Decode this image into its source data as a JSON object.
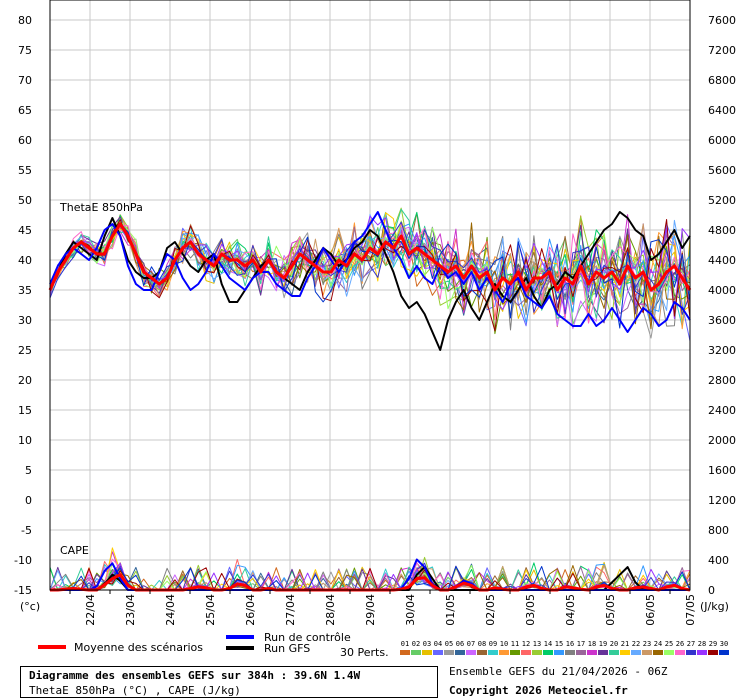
{
  "chart_data": {
    "type": "line",
    "top_panel_label": "ThetaE 850hPa",
    "bottom_panel_label": "CAPE",
    "left_unit": "(°c)",
    "right_unit": "(J/kg)",
    "left_axis_ticks": [
      80,
      75,
      70,
      65,
      60,
      55,
      50,
      45,
      40,
      35,
      30,
      25,
      20,
      15,
      10,
      5,
      0,
      -5,
      -10,
      -15
    ],
    "right_axis_ticks": [
      7600,
      7200,
      6800,
      6400,
      6000,
      5600,
      5200,
      4800,
      4400,
      4000,
      3600,
      3200,
      2800,
      2400,
      2000,
      1600,
      1200,
      800,
      400,
      0
    ],
    "ylim": [
      -15,
      80
    ],
    "ylim_right": [
      0,
      7600
    ],
    "x_labels": [
      "22/04",
      "23/04",
      "24/04",
      "25/04",
      "26/04",
      "27/04",
      "28/04",
      "29/04",
      "30/04",
      "01/05",
      "02/05",
      "03/05",
      "04/05",
      "05/05",
      "06/05",
      "07/05"
    ],
    "series": [
      {
        "name": "Moyenne des scénarios",
        "color": "#ff0000",
        "thetae": [
          35,
          38,
          40,
          42,
          43,
          42,
          41,
          41,
          44,
          46,
          44,
          41,
          38,
          37,
          36,
          37,
          40,
          42,
          43,
          41,
          40,
          39,
          41,
          40,
          40,
          39,
          40,
          38,
          40,
          38,
          37,
          39,
          41,
          40,
          39,
          38,
          38,
          40,
          39,
          41,
          40,
          42,
          41,
          43,
          42,
          44,
          41,
          42,
          41,
          40,
          39,
          38,
          39,
          37,
          39,
          37,
          38,
          35,
          37,
          36,
          38,
          35,
          37,
          37,
          38,
          35,
          37,
          36,
          39,
          36,
          38,
          37,
          38,
          36,
          39,
          37,
          38,
          35,
          36,
          38,
          39,
          37,
          35
        ],
        "cape": [
          0,
          0,
          10,
          20,
          10,
          0,
          0,
          70,
          150,
          200,
          60,
          0,
          0,
          0,
          0,
          0,
          0,
          0,
          20,
          40,
          30,
          0,
          0,
          20,
          80,
          60,
          0,
          0,
          20,
          0,
          0,
          0,
          0,
          0,
          0,
          0,
          0,
          0,
          0,
          0,
          0,
          0,
          0,
          0,
          0,
          10,
          40,
          150,
          160,
          60,
          0,
          0,
          40,
          90,
          60,
          0,
          0,
          30,
          10,
          0,
          0,
          40,
          60,
          20,
          0,
          0,
          40,
          30,
          10,
          0,
          40,
          60,
          20,
          0,
          0,
          30,
          40,
          20,
          0,
          40,
          60,
          20,
          0
        ]
      },
      {
        "name": "Run de contrôle",
        "color": "#0000ff",
        "thetae": [
          36,
          39,
          41,
          42,
          41,
          40,
          42,
          45,
          46,
          44,
          39,
          36,
          35,
          35,
          38,
          41,
          40,
          37,
          35,
          36,
          38,
          41,
          39,
          37,
          36,
          35,
          37,
          38,
          38,
          36,
          35,
          34,
          34,
          37,
          39,
          42,
          40,
          38,
          40,
          43,
          44,
          46,
          48,
          45,
          42,
          40,
          37,
          39,
          37,
          36,
          39,
          37,
          38,
          36,
          38,
          35,
          37,
          35,
          33,
          36,
          37,
          34,
          33,
          32,
          34,
          31,
          30,
          29,
          29,
          31,
          29,
          30,
          32,
          30,
          28,
          30,
          32,
          31,
          29,
          30,
          33,
          32,
          30
        ],
        "cape": [
          0,
          0,
          0,
          0,
          0,
          0,
          50,
          250,
          350,
          150,
          0,
          0,
          0,
          0,
          0,
          0,
          0,
          0,
          0,
          0,
          0,
          0,
          0,
          0,
          0,
          0,
          0,
          0,
          0,
          0,
          0,
          0,
          0,
          0,
          0,
          0,
          0,
          0,
          0,
          0,
          0,
          0,
          0,
          0,
          0,
          20,
          150,
          400,
          300,
          80,
          0,
          0,
          50,
          120,
          80,
          0,
          0,
          0,
          0,
          0,
          0,
          0,
          0,
          0,
          0,
          0,
          0,
          0,
          0,
          0,
          0,
          0,
          0,
          0,
          0,
          0,
          0,
          0,
          0,
          0,
          0,
          0,
          0
        ]
      },
      {
        "name": "Run GFS",
        "color": "#000000",
        "thetae": [
          35,
          38,
          41,
          43,
          42,
          41,
          40,
          44,
          47,
          44,
          40,
          38,
          37,
          37,
          38,
          42,
          43,
          41,
          39,
          38,
          40,
          41,
          36,
          33,
          33,
          35,
          37,
          39,
          40,
          38,
          37,
          36,
          35,
          38,
          40,
          42,
          41,
          39,
          40,
          42,
          43,
          45,
          44,
          41,
          38,
          34,
          32,
          33,
          31,
          28,
          25,
          30,
          33,
          35,
          32,
          30,
          33,
          36,
          34,
          33,
          35,
          37,
          34,
          32,
          35,
          36,
          38,
          37,
          39,
          41,
          43,
          45,
          46,
          48,
          47,
          45,
          44,
          40,
          41,
          43,
          45,
          42,
          44
        ],
        "cape": [
          0,
          0,
          0,
          0,
          0,
          0,
          0,
          80,
          200,
          120,
          0,
          0,
          0,
          0,
          0,
          0,
          0,
          0,
          0,
          0,
          0,
          0,
          0,
          0,
          0,
          0,
          0,
          0,
          0,
          0,
          0,
          0,
          0,
          0,
          0,
          0,
          0,
          0,
          0,
          0,
          0,
          0,
          0,
          0,
          0,
          0,
          0,
          200,
          300,
          150,
          0,
          0,
          0,
          0,
          0,
          0,
          0,
          0,
          0,
          0,
          0,
          0,
          0,
          0,
          0,
          0,
          0,
          0,
          0,
          0,
          0,
          0,
          100,
          200,
          300,
          100,
          0,
          0,
          0,
          0,
          0,
          0,
          0
        ]
      }
    ],
    "perturbation_count": 30
  },
  "legend": {
    "moyenne_label": "Moyenne des scénarios",
    "controle_label": "Run de contrôle",
    "gfs_label": "Run GFS",
    "perts_label": "30 Perts.",
    "perts_numbers": [
      "01",
      "02",
      "03",
      "04",
      "05",
      "06",
      "07",
      "08",
      "09",
      "10",
      "11",
      "12",
      "13",
      "14",
      "15",
      "16",
      "17",
      "18",
      "19",
      "20",
      "21",
      "22",
      "23",
      "24",
      "25",
      "26",
      "27",
      "28",
      "29",
      "30"
    ],
    "perts_colors": [
      "#d2691e",
      "#66cc66",
      "#e6c000",
      "#6666ff",
      "#999999",
      "#336699",
      "#cc66ff",
      "#996633",
      "#33cccc",
      "#ff9933",
      "#669900",
      "#ff6666",
      "#99cc33",
      "#00cc66",
      "#3399ff",
      "#808080",
      "#996699",
      "#cc33cc",
      "#663399",
      "#33cc99",
      "#ffcc00",
      "#66aaff",
      "#cc9966",
      "#996600",
      "#99ff66",
      "#ff66cc",
      "#3333cc",
      "#9933ff",
      "#990000",
      "#0033cc"
    ]
  },
  "footer": {
    "title": "Diagramme des ensembles GEFS sur 384h : 39.6N 1.4W",
    "subtitle": "ThetaE 850hPa (°C) , CAPE (J/kg)",
    "ensemble": "Ensemble GEFS du 21/04/2026 - 06Z",
    "copyright": "Copyright 2026 Meteociel.fr"
  }
}
